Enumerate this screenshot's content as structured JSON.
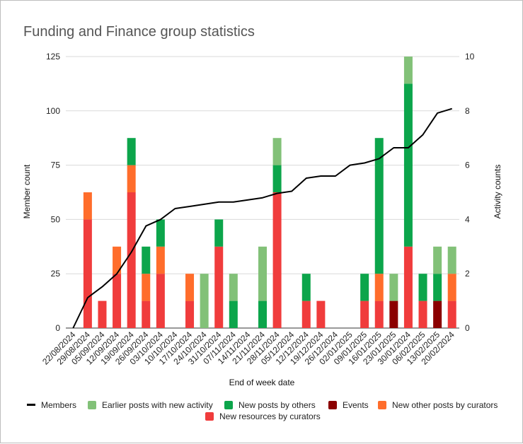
{
  "chart_data": {
    "type": "bar",
    "stacked": true,
    "title": "Funding and Finance group statistics",
    "xlabel": "End of week date",
    "ylabel_left": "Member count",
    "ylabel_right": "Activity counts",
    "ylim_left": [
      0,
      125
    ],
    "ylim_right": [
      0,
      10
    ],
    "yticks_left": [
      "0",
      "25",
      "50",
      "75",
      "100",
      "125"
    ],
    "yticks_right": [
      "0",
      "2",
      "4",
      "6",
      "8",
      "10"
    ],
    "grid": true,
    "legend_position": "bottom",
    "categories": [
      "22/08/2024",
      "29/08/2024",
      "05/09/2024",
      "12/09/2024",
      "19/09/2024",
      "26/09/2024",
      "03/10/2024",
      "10/10/2024",
      "17/10/2024",
      "24/10/2024",
      "31/10/2024",
      "07/11/2024",
      "14/11/2024",
      "21/11/2024",
      "28/11/2024",
      "05/12/2024",
      "12/12/2024",
      "19/12/2024",
      "26/12/2024",
      "02/01/2025",
      "09/01/2025",
      "16/01/2025",
      "23/01/2025",
      "30/01/2024",
      "06/02/2025",
      "13/02/2025",
      "20/02/2024"
    ],
    "bar_series": [
      {
        "name": "New resources by curators",
        "color": "#f03c3c",
        "values": [
          0,
          4,
          1,
          2,
          5,
          1,
          2,
          0,
          1,
          0,
          3,
          0,
          0,
          0,
          5,
          0,
          1,
          1,
          0,
          0,
          1,
          1,
          0,
          3,
          1,
          0,
          1
        ]
      },
      {
        "name": "Events",
        "color": "#8b0000",
        "values": [
          0,
          0,
          0,
          0,
          0,
          0,
          0,
          0,
          0,
          0,
          0,
          0,
          0,
          0,
          0,
          0,
          0,
          0,
          0,
          0,
          0,
          0,
          1,
          0,
          0,
          1,
          0
        ]
      },
      {
        "name": "New other posts by curators",
        "color": "#ff6d2b",
        "values": [
          0,
          1,
          0,
          1,
          1,
          1,
          1,
          0,
          1,
          0,
          0,
          0,
          0,
          0,
          0,
          0,
          0,
          0,
          0,
          0,
          0,
          1,
          0,
          0,
          0,
          0,
          1
        ]
      },
      {
        "name": "New posts by others",
        "color": "#0ca54b",
        "values": [
          0,
          0,
          0,
          0,
          1,
          1,
          1,
          0,
          0,
          0,
          1,
          1,
          0,
          1,
          1,
          0,
          1,
          0,
          0,
          0,
          1,
          5,
          0,
          6,
          1,
          1,
          0
        ]
      },
      {
        "name": "Earlier posts with new activity",
        "color": "#82c178",
        "values": [
          0,
          0,
          0,
          0,
          0,
          0,
          0,
          0,
          0,
          2,
          0,
          1,
          0,
          2,
          1,
          0,
          0,
          0,
          0,
          0,
          0,
          0,
          1,
          1,
          0,
          1,
          1
        ]
      }
    ],
    "line_series": {
      "name": "Members",
      "color": "#000000",
      "values": [
        0,
        14,
        19,
        25,
        35,
        47,
        50,
        55,
        56,
        57,
        58,
        58,
        59,
        60,
        62,
        63,
        69,
        70,
        70,
        75,
        76,
        78,
        83,
        83,
        89,
        99,
        101
      ]
    },
    "legend_order": [
      "Members",
      "Earlier posts with new activity",
      "New posts by others",
      "Events",
      "New other posts by curators",
      "New resources by curators"
    ]
  }
}
